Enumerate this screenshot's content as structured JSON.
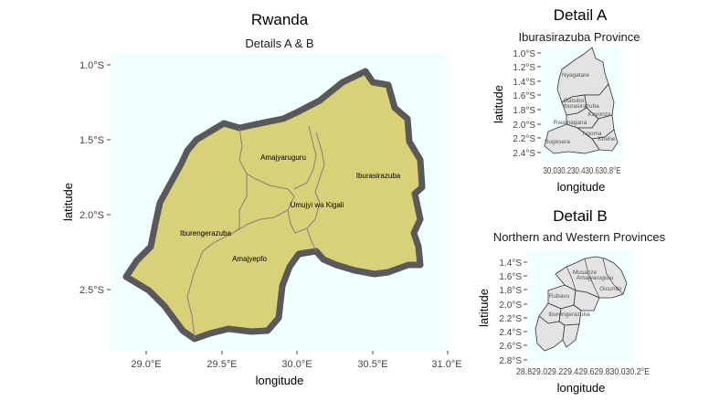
{
  "main_map": {
    "title": "Rwanda",
    "subtitle": "Details A & B",
    "xlabel": "longitude",
    "ylabel": "latitude",
    "x_ticks": [
      "29.0°E",
      "29.5°E",
      "30.0°E",
      "30.5°E",
      "31.0°E"
    ],
    "y_ticks": [
      "1.0°S",
      "1.5°S",
      "2.0°S",
      "2.5°S"
    ],
    "regions": [
      "Amajyaruguru",
      "Iburasirazuba",
      "Umujyi wa Kigali",
      "Iburengerazuba",
      "Amajyepfo"
    ],
    "country_fill": "#d9d178",
    "border_color": "#595959",
    "panel_bg": "#f0ffff"
  },
  "detail_a": {
    "title": "Detail A",
    "subtitle": "Iburasirazuba Province",
    "xlabel": "longitude",
    "ylabel": "latitude",
    "x_ticks_text": "30.030.230.430.630.8°E",
    "y_ticks": [
      "1.0°S",
      "1.2°S",
      "1.4°S",
      "1.6°S",
      "1.8°S",
      "2.0°S",
      "2.2°S",
      "2.4°S"
    ],
    "district_labels": [
      "Nyagatare",
      "Gatsibo",
      "Iburasirazuba",
      "Kayonza",
      "Rwamagana",
      "Ngoma",
      "Kirehe",
      "Bugesera"
    ]
  },
  "detail_b": {
    "title": "Detail B",
    "subtitle": "Northern and Western Provinces",
    "xlabel": "longitude",
    "ylabel": "latitude",
    "x_ticks_text": "28.829.029.229.429.629.830.030.2°E",
    "y_ticks": [
      "1.4°S",
      "1.6°S",
      "1.8°S",
      "2.0°S",
      "2.2°S",
      "2.4°S",
      "2.6°S",
      "2.8°S"
    ],
    "district_labels": [
      "Iburengerazuba",
      "Amajyaruguru",
      "Rubavu",
      "Musanze",
      "Gicumbi"
    ]
  },
  "colors": {
    "district_fill": "#e3e3e3",
    "district_line": "#333333"
  }
}
